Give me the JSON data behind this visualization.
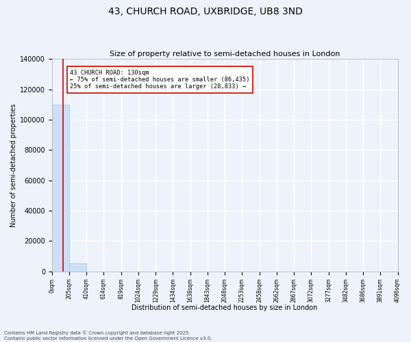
{
  "title": "43, CHURCH ROAD, UXBRIDGE, UB8 3ND",
  "subtitle": "Size of property relative to semi-detached houses in London",
  "ylabel": "Number of semi-detached properties",
  "xlabel": "Distribution of semi-detached houses by size in London",
  "footer_line1": "Contains HM Land Registry data © Crown copyright and database right 2025.",
  "footer_line2": "Contains public sector information licensed under the Open Government Licence v3.0.",
  "annotation_line1": "43 CHURCH ROAD: 130sqm",
  "annotation_line2": "← 75% of semi-detached houses are smaller (86,435)",
  "annotation_line3": "25% of semi-detached houses are larger (28,833) →",
  "bar_color": "#cce0f5",
  "bar_edgecolor": "#a0c4e8",
  "redline_color": "#cc0000",
  "annotation_edgecolor": "#cc0000",
  "background_color": "#eef2fb",
  "grid_color": "#ffffff",
  "ylim": [
    0,
    140000
  ],
  "yticks": [
    0,
    20000,
    40000,
    60000,
    80000,
    100000,
    120000,
    140000
  ],
  "bin_edges": [
    0,
    205,
    410,
    614,
    819,
    1024,
    1229,
    1434,
    1638,
    1843,
    2048,
    2253,
    2458,
    2662,
    2867,
    3072,
    3277,
    3482,
    3686,
    3891,
    4096
  ],
  "bin_labels": [
    "0sqm",
    "205sqm",
    "410sqm",
    "614sqm",
    "819sqm",
    "1024sqm",
    "1229sqm",
    "1434sqm",
    "1638sqm",
    "1843sqm",
    "2048sqm",
    "2253sqm",
    "2458sqm",
    "2662sqm",
    "2867sqm",
    "3072sqm",
    "3277sqm",
    "3482sqm",
    "3686sqm",
    "3891sqm",
    "4096sqm"
  ],
  "bar_heights": [
    110000,
    5500,
    0,
    0,
    0,
    0,
    0,
    0,
    0,
    0,
    0,
    0,
    0,
    0,
    0,
    0,
    0,
    0,
    0,
    0
  ],
  "property_size_sqm": 130,
  "redline_x": 130
}
